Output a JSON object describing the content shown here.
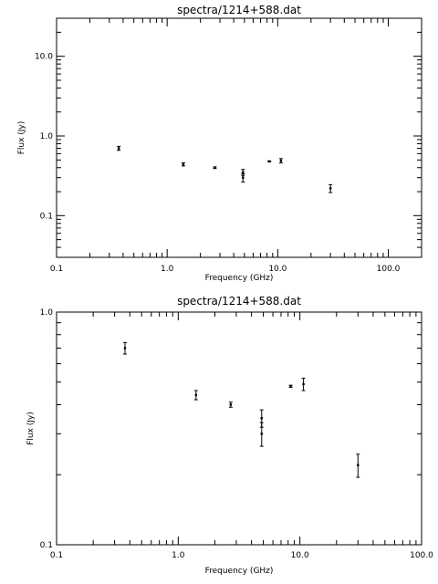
{
  "chart_data": [
    {
      "type": "scatter",
      "title": "spectra/1214+588.dat",
      "xlabel": "Frequency (GHz)",
      "ylabel": "Flux (Jy)",
      "xscale": "log",
      "yscale": "log",
      "xlim": [
        0.1,
        200
      ],
      "ylim": [
        0.03,
        30
      ],
      "xticks": [
        0.1,
        1.0,
        10.0,
        100.0
      ],
      "xtick_labels": [
        "0.1",
        "1.0",
        "10.0",
        "100.0"
      ],
      "yticks": [
        0.1,
        1.0,
        10.0
      ],
      "ytick_labels": [
        "0.1",
        "1.0",
        "10.0"
      ],
      "grid": false,
      "series": [
        {
          "points": [
            {
              "x": 0.365,
              "y": 0.7,
              "err": 0.04
            },
            {
              "x": 1.4,
              "y": 0.44,
              "err": 0.02
            },
            {
              "x": 2.7,
              "y": 0.4,
              "err": 0.01
            },
            {
              "x": 4.85,
              "y": 0.35,
              "err": 0.03
            },
            {
              "x": 4.85,
              "y": 0.3,
              "err": 0.035
            },
            {
              "x": 8.4,
              "y": 0.48,
              "err": 0.005
            },
            {
              "x": 10.7,
              "y": 0.49,
              "err": 0.03
            },
            {
              "x": 30.0,
              "y": 0.22,
              "err": 0.025
            }
          ]
        }
      ]
    },
    {
      "type": "scatter",
      "title": "spectra/1214+588.dat",
      "xlabel": "Frequency (GHz)",
      "ylabel": "Flux (Jy)",
      "xscale": "log",
      "yscale": "log",
      "xlim": [
        0.1,
        100
      ],
      "ylim": [
        0.1,
        1.0
      ],
      "xticks": [
        0.1,
        1.0,
        10.0,
        100.0
      ],
      "xtick_labels": [
        "0.1",
        "1.0",
        "10.0",
        "100.0"
      ],
      "yticks": [
        0.1,
        1.0
      ],
      "ytick_labels": [
        "0.1",
        "1.0"
      ],
      "grid": false,
      "series": [
        {
          "points": [
            {
              "x": 0.365,
              "y": 0.7,
              "err": 0.04
            },
            {
              "x": 1.4,
              "y": 0.44,
              "err": 0.02
            },
            {
              "x": 2.7,
              "y": 0.4,
              "err": 0.01
            },
            {
              "x": 4.85,
              "y": 0.35,
              "err": 0.03
            },
            {
              "x": 4.85,
              "y": 0.3,
              "err": 0.035
            },
            {
              "x": 8.4,
              "y": 0.48,
              "err": 0.005
            },
            {
              "x": 10.7,
              "y": 0.49,
              "err": 0.03
            },
            {
              "x": 30.0,
              "y": 0.22,
              "err": 0.025
            }
          ]
        }
      ]
    }
  ]
}
